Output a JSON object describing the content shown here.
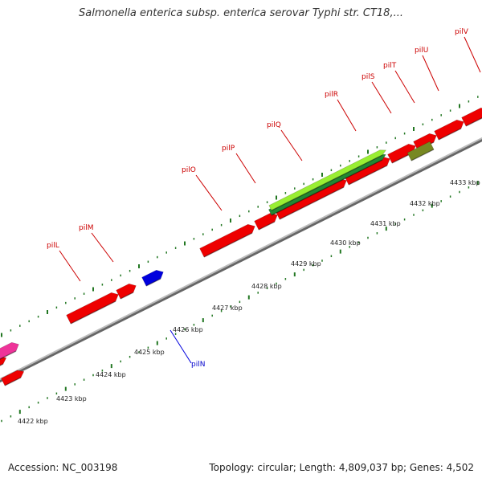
{
  "title": "Salmonella enterica subsp. enterica serovar Typhi str. CT18,...",
  "footer": {
    "accession": "Accession: NC_003198",
    "summary": "Topology: circular; Length: 4,809,037 bp; Genes: 4,502"
  },
  "scale_labels": [
    "4422 kbp",
    "4423 kbp",
    "4424 kbp",
    "4425 kbp",
    "4426 kbp",
    "4427 kbp",
    "4428 kbp",
    "4429 kbp",
    "4430 kbp",
    "4431 kbp",
    "4432 kbp",
    "4433 kbp"
  ],
  "genes": [
    {
      "name": "pilL",
      "strand": "+",
      "color": "#ee0000"
    },
    {
      "name": "pilM",
      "strand": "+",
      "color": "#ee0000"
    },
    {
      "name": "pilN",
      "strand": "-",
      "color": "#0000dd"
    },
    {
      "name": "pilO",
      "strand": "+",
      "color": "#ee0000"
    },
    {
      "name": "pilP",
      "strand": "+",
      "color": "#ee0000"
    },
    {
      "name": "pilQ",
      "strand": "+",
      "color": "#ee0000"
    },
    {
      "name": "pilR",
      "strand": "+",
      "color": "#ee0000"
    },
    {
      "name": "pilS",
      "strand": "+",
      "color": "#ee0000"
    },
    {
      "name": "pilT",
      "strand": "+",
      "color": "#ee0000"
    },
    {
      "name": "pilU",
      "strand": "+",
      "color": "#ee0000"
    },
    {
      "name": "pilV",
      "strand": "+",
      "color": "#ee0000"
    }
  ],
  "colors": {
    "gene_forward": "#ee0000",
    "gene_reverse": "#0000dd",
    "feature_green_light": "#99ee33",
    "feature_green_dark": "#228833",
    "feature_olive": "#778822",
    "feature_pink": "#ee3399",
    "backbone": "#999999",
    "ticks": "#227722"
  }
}
